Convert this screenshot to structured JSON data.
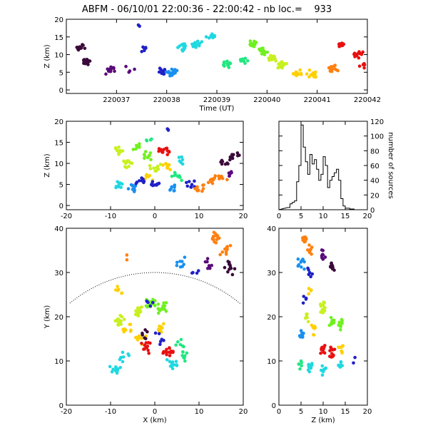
{
  "title": "ABFM - 06/10/01 22:00:36 - 22:00:42 - nb loc.=    933",
  "colors": [
    "#3a0a3a",
    "#5a0a7a",
    "#2020c8",
    "#1890f0",
    "#20d8e0",
    "#20e880",
    "#70f020",
    "#c8f020",
    "#ffd000",
    "#ff8010",
    "#e81010"
  ],
  "chart_data": [
    {
      "id": "time-height",
      "type": "scatter",
      "title": "",
      "xlabel": "Time (UT)",
      "ylabel": "Z (km)",
      "xlim": [
        220036,
        220042
      ],
      "ylim": [
        -1,
        20
      ],
      "xticks": [
        "220037",
        "220038",
        "220039",
        "220040",
        "220041",
        "220042"
      ],
      "yticks": [
        "0",
        "5",
        "10",
        "15",
        "20"
      ],
      "clusters": [
        {
          "t": 220036.3,
          "z": 12,
          "n": 14,
          "color": 0
        },
        {
          "t": 220036.4,
          "z": 8,
          "n": 16,
          "color": 0
        },
        {
          "t": 220036.9,
          "z": 5.5,
          "n": 14,
          "color": 1
        },
        {
          "t": 220037.3,
          "z": 6,
          "n": 4,
          "color": 1
        },
        {
          "t": 220037.5,
          "z": 18,
          "n": 2,
          "color": 2
        },
        {
          "t": 220037.5,
          "z": 12,
          "n": 6,
          "color": 2
        },
        {
          "t": 220037.9,
          "z": 5,
          "n": 16,
          "color": 2
        },
        {
          "t": 220038.1,
          "z": 5,
          "n": 16,
          "color": 3
        },
        {
          "t": 220038.3,
          "z": 12,
          "n": 12,
          "color": 4
        },
        {
          "t": 220038.6,
          "z": 13,
          "n": 14,
          "color": 4
        },
        {
          "t": 220038.9,
          "z": 15,
          "n": 10,
          "color": 4
        },
        {
          "t": 220039.2,
          "z": 7,
          "n": 14,
          "color": 5
        },
        {
          "t": 220039.5,
          "z": 8,
          "n": 10,
          "color": 5
        },
        {
          "t": 220039.7,
          "z": 13,
          "n": 16,
          "color": 6
        },
        {
          "t": 220039.9,
          "z": 11,
          "n": 14,
          "color": 6
        },
        {
          "t": 220040.1,
          "z": 9,
          "n": 18,
          "color": 7
        },
        {
          "t": 220040.3,
          "z": 7,
          "n": 14,
          "color": 7
        },
        {
          "t": 220040.6,
          "z": 5,
          "n": 10,
          "color": 8
        },
        {
          "t": 220040.9,
          "z": 4.5,
          "n": 14,
          "color": 8
        },
        {
          "t": 220041.3,
          "z": 6,
          "n": 12,
          "color": 9
        },
        {
          "t": 220041.5,
          "z": 13,
          "n": 10,
          "color": 10
        },
        {
          "t": 220041.8,
          "z": 10,
          "n": 14,
          "color": 10
        },
        {
          "t": 220041.95,
          "z": 7,
          "n": 6,
          "color": 10
        }
      ]
    },
    {
      "id": "x-z",
      "type": "scatter",
      "title": "",
      "xlabel": "",
      "ylabel": "Z (km)",
      "xlim": [
        -20,
        20
      ],
      "ylim": [
        -1,
        20
      ],
      "xticks": [
        "-20",
        "-10",
        "0",
        "10",
        "20"
      ],
      "yticks": [
        "0",
        "5",
        "10",
        "15",
        "20"
      ],
      "clusters": [
        {
          "x": -8,
          "z": 13,
          "n": 12,
          "color": 7
        },
        {
          "x": -6,
          "z": 10,
          "n": 12,
          "color": 7
        },
        {
          "x": -4,
          "z": 14,
          "n": 8,
          "color": 6
        },
        {
          "x": -2,
          "z": 12,
          "n": 10,
          "color": 6
        },
        {
          "x": 0,
          "z": 9,
          "n": 10,
          "color": 7
        },
        {
          "x": -1,
          "z": 7,
          "n": 8,
          "color": 8
        },
        {
          "x": 2,
          "z": 13,
          "n": 14,
          "color": 10
        },
        {
          "x": 3,
          "z": 9,
          "n": 8,
          "color": 8
        },
        {
          "x": -1,
          "z": 16,
          "n": 4,
          "color": 5
        },
        {
          "x": 3,
          "z": 18,
          "n": 3,
          "color": 2
        },
        {
          "x": 5,
          "z": 7,
          "n": 10,
          "color": 5
        },
        {
          "x": 6,
          "z": 11,
          "n": 6,
          "color": 4
        },
        {
          "x": -8,
          "z": 5,
          "n": 10,
          "color": 4
        },
        {
          "x": -5,
          "z": 4,
          "n": 10,
          "color": 3
        },
        {
          "x": -3,
          "z": 6,
          "n": 8,
          "color": 2
        },
        {
          "x": 0,
          "z": 5,
          "n": 10,
          "color": 2
        },
        {
          "x": 4,
          "z": 4,
          "n": 8,
          "color": 3
        },
        {
          "x": 8,
          "z": 5,
          "n": 8,
          "color": 2
        },
        {
          "x": 10,
          "z": 4,
          "n": 10,
          "color": 9
        },
        {
          "x": 13,
          "z": 6,
          "n": 10,
          "color": 9
        },
        {
          "x": 15,
          "z": 7,
          "n": 8,
          "color": 9
        },
        {
          "x": 16,
          "z": 10,
          "n": 8,
          "color": 0
        },
        {
          "x": 18,
          "z": 12,
          "n": 8,
          "color": 0
        },
        {
          "x": 17,
          "z": 7,
          "n": 6,
          "color": 1
        }
      ]
    },
    {
      "id": "z-histogram",
      "type": "line",
      "title": "",
      "xlabel": "",
      "ylabel": "number of sources",
      "xlim": [
        0,
        20
      ],
      "ylim": [
        0,
        120
      ],
      "xticks": [
        "0",
        "5",
        "10",
        "15",
        "20"
      ],
      "yticks": [
        "0",
        "20",
        "40",
        "60",
        "80",
        "100",
        "120"
      ],
      "x": [
        2,
        2.5,
        3,
        3.5,
        4,
        4.5,
        5,
        5.5,
        6,
        6.5,
        7,
        7.5,
        8,
        8.5,
        9,
        9.5,
        10,
        10.5,
        11,
        11.5,
        12,
        12.5,
        13,
        13.5,
        14,
        14.5,
        15,
        16,
        17,
        18,
        19
      ],
      "y": [
        3,
        8,
        10,
        12,
        38,
        60,
        115,
        85,
        65,
        48,
        75,
        62,
        68,
        55,
        40,
        48,
        72,
        60,
        30,
        40,
        45,
        50,
        55,
        40,
        15,
        5,
        2,
        1,
        0,
        0,
        0
      ]
    },
    {
      "id": "x-y",
      "type": "scatter",
      "title": "",
      "xlabel": "X (km)",
      "ylabel": "Y (km)",
      "xlim": [
        -20,
        20
      ],
      "ylim": [
        0,
        40
      ],
      "xticks": [
        "-20",
        "-10",
        "0",
        "10",
        "20"
      ],
      "yticks": [
        "0",
        "10",
        "20",
        "30",
        "40"
      ],
      "range_circle_km": 30,
      "clusters": [
        {
          "x": 14,
          "y": 38,
          "n": 16,
          "color": 9
        },
        {
          "x": 16,
          "y": 35,
          "n": 10,
          "color": 9
        },
        {
          "x": 17,
          "y": 31,
          "n": 12,
          "color": 0
        },
        {
          "x": 12,
          "y": 32,
          "n": 8,
          "color": 1
        },
        {
          "x": 6,
          "y": 32,
          "n": 8,
          "color": 3
        },
        {
          "x": 9,
          "y": 30,
          "n": 4,
          "color": 2
        },
        {
          "x": -6,
          "y": 33,
          "n": 2,
          "color": 9
        },
        {
          "x": -8,
          "y": 26,
          "n": 6,
          "color": 8
        },
        {
          "x": -8,
          "y": 19,
          "n": 18,
          "color": 7
        },
        {
          "x": -4,
          "y": 21,
          "n": 18,
          "color": 7
        },
        {
          "x": -1,
          "y": 23,
          "n": 16,
          "color": 6
        },
        {
          "x": 2,
          "y": 22,
          "n": 14,
          "color": 6
        },
        {
          "x": -6,
          "y": 17,
          "n": 8,
          "color": 8
        },
        {
          "x": -3,
          "y": 15,
          "n": 10,
          "color": 8
        },
        {
          "x": 1,
          "y": 17,
          "n": 8,
          "color": 8
        },
        {
          "x": -2,
          "y": 13,
          "n": 14,
          "color": 10
        },
        {
          "x": 3,
          "y": 12,
          "n": 14,
          "color": 10
        },
        {
          "x": -1,
          "y": 23,
          "n": 4,
          "color": 2
        },
        {
          "x": -2,
          "y": 16,
          "n": 6,
          "color": 0
        },
        {
          "x": 1,
          "y": 15,
          "n": 6,
          "color": 2
        },
        {
          "x": -9,
          "y": 8,
          "n": 12,
          "color": 4
        },
        {
          "x": -7,
          "y": 11,
          "n": 8,
          "color": 4
        },
        {
          "x": 4,
          "y": 9,
          "n": 12,
          "color": 4
        },
        {
          "x": 6,
          "y": 11,
          "n": 8,
          "color": 5
        },
        {
          "x": 6,
          "y": 14,
          "n": 6,
          "color": 5
        }
      ]
    },
    {
      "id": "z-y",
      "type": "scatter",
      "title": "",
      "xlabel": "Z (km)",
      "ylabel": "",
      "xlim": [
        0,
        20
      ],
      "ylim": [
        0,
        40
      ],
      "xticks": [
        "0",
        "5",
        "10",
        "15",
        "20"
      ],
      "yticks": [
        "0",
        "10",
        "20",
        "30",
        "40"
      ],
      "clusters": [
        {
          "z": 6,
          "y": 38,
          "n": 12,
          "color": 9
        },
        {
          "z": 7,
          "y": 35,
          "n": 10,
          "color": 9
        },
        {
          "z": 10,
          "y": 34,
          "n": 10,
          "color": 1
        },
        {
          "z": 12,
          "y": 31,
          "n": 10,
          "color": 0
        },
        {
          "z": 5,
          "y": 32,
          "n": 10,
          "color": 3
        },
        {
          "z": 7,
          "y": 30,
          "n": 6,
          "color": 2
        },
        {
          "z": 7,
          "y": 26,
          "n": 4,
          "color": 8
        },
        {
          "z": 10,
          "y": 22,
          "n": 14,
          "color": 7
        },
        {
          "z": 12,
          "y": 19,
          "n": 14,
          "color": 6
        },
        {
          "z": 14,
          "y": 18,
          "n": 10,
          "color": 6
        },
        {
          "z": 6,
          "y": 20,
          "n": 6,
          "color": 7
        },
        {
          "z": 5,
          "y": 16,
          "n": 10,
          "color": 3
        },
        {
          "z": 8,
          "y": 17,
          "n": 8,
          "color": 8
        },
        {
          "z": 10,
          "y": 13,
          "n": 14,
          "color": 10
        },
        {
          "z": 12,
          "y": 12,
          "n": 12,
          "color": 10
        },
        {
          "z": 14,
          "y": 13,
          "n": 8,
          "color": 8
        },
        {
          "z": 6,
          "y": 24,
          "n": 4,
          "color": 2
        },
        {
          "z": 7,
          "y": 9,
          "n": 12,
          "color": 4
        },
        {
          "z": 10,
          "y": 8,
          "n": 12,
          "color": 4
        },
        {
          "z": 14,
          "y": 9,
          "n": 8,
          "color": 4
        },
        {
          "z": 17,
          "y": 10,
          "n": 2,
          "color": 2
        },
        {
          "z": 5,
          "y": 9,
          "n": 6,
          "color": 5
        }
      ]
    }
  ]
}
